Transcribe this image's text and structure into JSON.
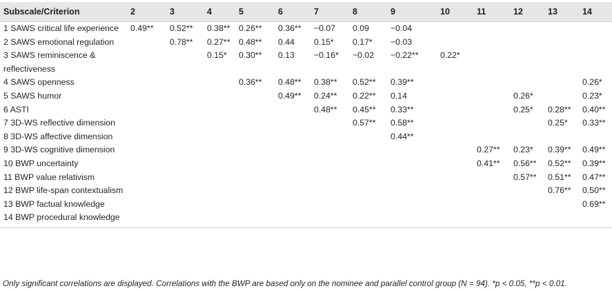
{
  "header": [
    "Subscale/Criterion",
    "2",
    "3",
    "4",
    "5",
    "6",
    "7",
    "8",
    "9",
    "10",
    "11",
    "12",
    "13",
    "14"
  ],
  "rows": [
    [
      "1 SAWS critical life experience",
      "0.49**",
      "0.52**",
      "0.38**",
      "0.26**",
      "0.36**",
      "−0.07",
      "0.09",
      "−0.04",
      "",
      "",
      "",
      "",
      ""
    ],
    [
      "2 SAWS emotional regulation",
      "",
      "0.78**",
      "0.27**",
      "0.48**",
      "0.44",
      "0.15*",
      "0.17*",
      "−0.03",
      "",
      "",
      "",
      "",
      ""
    ],
    [
      "3 SAWS reminiscence & reflectiveness",
      "",
      "",
      "0.15*",
      "0.30**",
      "0.13",
      "−0.16*",
      "−0.02",
      "−0.22**",
      "0.22*",
      "",
      "",
      "",
      ""
    ],
    [
      "4 SAWS openness",
      "",
      "",
      "",
      "0.36**",
      "0.48**",
      "0.38**",
      "0.52**",
      "0.39**",
      "",
      "",
      "",
      "",
      "0.26*"
    ],
    [
      "5 SAWS humor",
      "",
      "",
      "",
      "",
      "0.49**",
      "0.24**",
      "0.22**",
      "0.14",
      "",
      "",
      "0.26*",
      "",
      "0.23*"
    ],
    [
      "6 ASTI",
      "",
      "",
      "",
      "",
      "",
      "0.48**",
      "0.45**",
      "0.33**",
      "",
      "",
      "0.25*",
      "0.28**",
      "0.40**"
    ],
    [
      "7 3D-WS reflective dimension",
      "",
      "",
      "",
      "",
      "",
      "",
      "0.57**",
      "0.58**",
      "",
      "",
      "",
      "0.25*",
      "0.33**"
    ],
    [
      "8 3D-WS affective dimension",
      "",
      "",
      "",
      "",
      "",
      "",
      "",
      "0.44**",
      "",
      "",
      "",
      "",
      ""
    ],
    [
      "9 3D-WS cognitive dimension",
      "",
      "",
      "",
      "",
      "",
      "",
      "",
      "",
      "",
      "0.27**",
      "0.23*",
      "0.39**",
      "0.49**"
    ],
    [
      "10 BWP uncertainty",
      "",
      "",
      "",
      "",
      "",
      "",
      "",
      "",
      "",
      "0.41**",
      "0.56**",
      "0.52**",
      "0.39**"
    ],
    [
      "11 BWP value relativism",
      "",
      "",
      "",
      "",
      "",
      "",
      "",
      "",
      "",
      "",
      "0.57**",
      "0.51**",
      "0.47**"
    ],
    [
      "12 BWP life-span contextualism",
      "",
      "",
      "",
      "",
      "",
      "",
      "",
      "",
      "",
      "",
      "",
      "0.76**",
      "0.50**"
    ],
    [
      "13 BWP factual knowledge",
      "",
      "",
      "",
      "",
      "",
      "",
      "",
      "",
      "",
      "",
      "",
      "",
      "0.69**"
    ],
    [
      "14 BWP procedural knowledge",
      "",
      "",
      "",
      "",
      "",
      "",
      "",
      "",
      "",
      "",
      "",
      "",
      ""
    ]
  ],
  "note": "Only significant correlations are displayed. Correlations with the BWP are based only on the nominee and parallel control group (N = 94). *p < 0.05, **p < 0.01."
}
